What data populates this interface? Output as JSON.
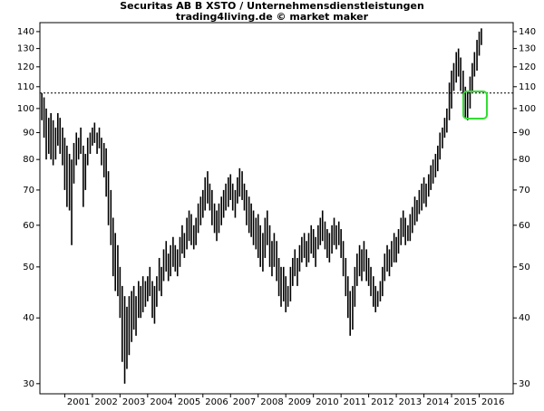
{
  "chart_data": {
    "type": "hilo",
    "title": "Securitas AB B XSTO / Unternehmensdienstleistungen",
    "subtitle": "trading4living.de © market maker",
    "log_scale": true,
    "color": "#000000",
    "highlight_color": "#33dd33",
    "xlim": [
      2000.1,
      2017.23
    ],
    "xticks": [
      2001,
      2002,
      2003,
      2004,
      2005,
      2006,
      2007,
      2008,
      2009,
      2010,
      2011,
      2012,
      2013,
      2014,
      2015,
      2016
    ],
    "ylim": [
      28.7,
      145.6
    ],
    "yticks": [
      30,
      40,
      50,
      60,
      70,
      80,
      90,
      100,
      110,
      120,
      130,
      140
    ],
    "reference_line": 107,
    "x": [
      2000.17,
      2000.25,
      2000.33,
      2000.42,
      2000.5,
      2000.58,
      2000.67,
      2000.75,
      2000.83,
      2000.92,
      2001,
      2001.08,
      2001.17,
      2001.25,
      2001.33,
      2001.42,
      2001.5,
      2001.58,
      2001.67,
      2001.75,
      2001.83,
      2001.92,
      2002,
      2002.08,
      2002.17,
      2002.25,
      2002.33,
      2002.42,
      2002.5,
      2002.58,
      2002.67,
      2002.75,
      2002.83,
      2002.92,
      2003,
      2003.08,
      2003.17,
      2003.25,
      2003.33,
      2003.42,
      2003.5,
      2003.58,
      2003.67,
      2003.75,
      2003.83,
      2003.92,
      2004,
      2004.08,
      2004.17,
      2004.25,
      2004.33,
      2004.42,
      2004.5,
      2004.58,
      2004.67,
      2004.75,
      2004.83,
      2004.92,
      2005,
      2005.08,
      2005.17,
      2005.25,
      2005.33,
      2005.42,
      2005.5,
      2005.58,
      2005.67,
      2005.75,
      2005.83,
      2005.92,
      2006,
      2006.08,
      2006.17,
      2006.25,
      2006.33,
      2006.42,
      2006.5,
      2006.58,
      2006.67,
      2006.75,
      2006.83,
      2006.92,
      2007,
      2007.08,
      2007.17,
      2007.25,
      2007.33,
      2007.42,
      2007.5,
      2007.58,
      2007.67,
      2007.75,
      2007.83,
      2007.92,
      2008,
      2008.08,
      2008.17,
      2008.25,
      2008.33,
      2008.42,
      2008.5,
      2008.58,
      2008.67,
      2008.75,
      2008.83,
      2008.92,
      2009,
      2009.08,
      2009.17,
      2009.25,
      2009.33,
      2009.42,
      2009.5,
      2009.58,
      2009.67,
      2009.75,
      2009.83,
      2009.92,
      2010,
      2010.08,
      2010.17,
      2010.25,
      2010.33,
      2010.42,
      2010.5,
      2010.58,
      2010.67,
      2010.75,
      2010.83,
      2010.92,
      2011,
      2011.08,
      2011.17,
      2011.25,
      2011.33,
      2011.42,
      2011.5,
      2011.58,
      2011.67,
      2011.75,
      2011.83,
      2011.92,
      2012,
      2012.08,
      2012.17,
      2012.25,
      2012.33,
      2012.42,
      2012.5,
      2012.58,
      2012.67,
      2012.75,
      2012.83,
      2012.92,
      2013,
      2013.08,
      2013.17,
      2013.25,
      2013.33,
      2013.42,
      2013.5,
      2013.58,
      2013.67,
      2013.75,
      2013.83,
      2013.92,
      2014,
      2014.08,
      2014.17,
      2014.25,
      2014.33,
      2014.42,
      2014.5,
      2014.58,
      2014.67,
      2014.75,
      2014.83,
      2014.92,
      2015,
      2015.08,
      2015.17,
      2015.25,
      2015.33,
      2015.42,
      2015.5,
      2015.58,
      2015.67,
      2015.75,
      2015.83,
      2015.92,
      2016,
      2016.08
    ],
    "high": [
      107,
      105,
      100,
      96,
      98,
      95,
      92,
      98,
      96,
      92,
      88,
      85,
      82,
      80,
      86,
      90,
      88,
      92,
      85,
      82,
      88,
      90,
      92,
      94,
      90,
      92,
      88,
      86,
      84,
      76,
      70,
      62,
      58,
      55,
      50,
      46,
      44,
      42,
      44,
      45,
      46,
      44,
      47,
      46,
      48,
      47,
      48,
      50,
      47,
      46,
      48,
      52,
      50,
      54,
      56,
      53,
      55,
      57,
      55,
      54,
      57,
      60,
      58,
      62,
      64,
      63,
      60,
      62,
      66,
      68,
      70,
      74,
      76,
      72,
      70,
      66,
      64,
      66,
      68,
      70,
      72,
      74,
      75,
      72,
      70,
      74,
      77,
      76,
      72,
      70,
      68,
      66,
      64,
      62,
      63,
      60,
      58,
      62,
      64,
      60,
      56,
      58,
      56,
      52,
      50,
      50,
      48,
      46,
      50,
      52,
      54,
      52,
      55,
      57,
      58,
      56,
      58,
      60,
      59,
      57,
      60,
      62,
      64,
      61,
      59,
      58,
      60,
      62,
      60,
      61,
      59,
      56,
      52,
      48,
      45,
      46,
      50,
      53,
      55,
      54,
      56,
      54,
      52,
      50,
      48,
      46,
      45,
      47,
      50,
      53,
      55,
      54,
      56,
      58,
      57,
      59,
      62,
      64,
      62,
      60,
      63,
      65,
      68,
      67,
      70,
      72,
      74,
      72,
      75,
      78,
      80,
      82,
      85,
      90,
      92,
      96,
      100,
      112,
      118,
      122,
      128,
      130,
      125,
      118,
      110,
      108,
      115,
      122,
      128,
      135,
      140,
      142
    ],
    "low": [
      95,
      88,
      80,
      82,
      80,
      78,
      80,
      85,
      82,
      78,
      70,
      65,
      64,
      55,
      72,
      78,
      80,
      82,
      65,
      70,
      78,
      82,
      85,
      86,
      82,
      84,
      78,
      74,
      68,
      60,
      55,
      48,
      45,
      44,
      40,
      33,
      30,
      32,
      34,
      36,
      38,
      37,
      40,
      40,
      41,
      42,
      43,
      44,
      40,
      39,
      42,
      45,
      44,
      47,
      49,
      47,
      48,
      50,
      49,
      48,
      50,
      53,
      52,
      54,
      56,
      55,
      54,
      55,
      58,
      60,
      62,
      64,
      66,
      64,
      60,
      58,
      56,
      58,
      60,
      62,
      64,
      65,
      67,
      64,
      62,
      66,
      68,
      67,
      64,
      60,
      58,
      57,
      55,
      54,
      52,
      50,
      49,
      52,
      55,
      50,
      48,
      50,
      47,
      44,
      42,
      43,
      41,
      42,
      43,
      46,
      48,
      46,
      49,
      51,
      52,
      50,
      51,
      53,
      52,
      50,
      54,
      55,
      56,
      54,
      52,
      51,
      53,
      55,
      54,
      55,
      52,
      48,
      44,
      40,
      37,
      38,
      42,
      46,
      48,
      47,
      49,
      47,
      46,
      44,
      42,
      41,
      42,
      43,
      44,
      47,
      49,
      48,
      50,
      51,
      51,
      53,
      55,
      57,
      55,
      56,
      56,
      58,
      60,
      61,
      63,
      64,
      66,
      65,
      68,
      70,
      72,
      74,
      76,
      80,
      84,
      88,
      90,
      95,
      100,
      108,
      112,
      115,
      108,
      100,
      96,
      95,
      100,
      108,
      115,
      118,
      126,
      132
    ]
  }
}
